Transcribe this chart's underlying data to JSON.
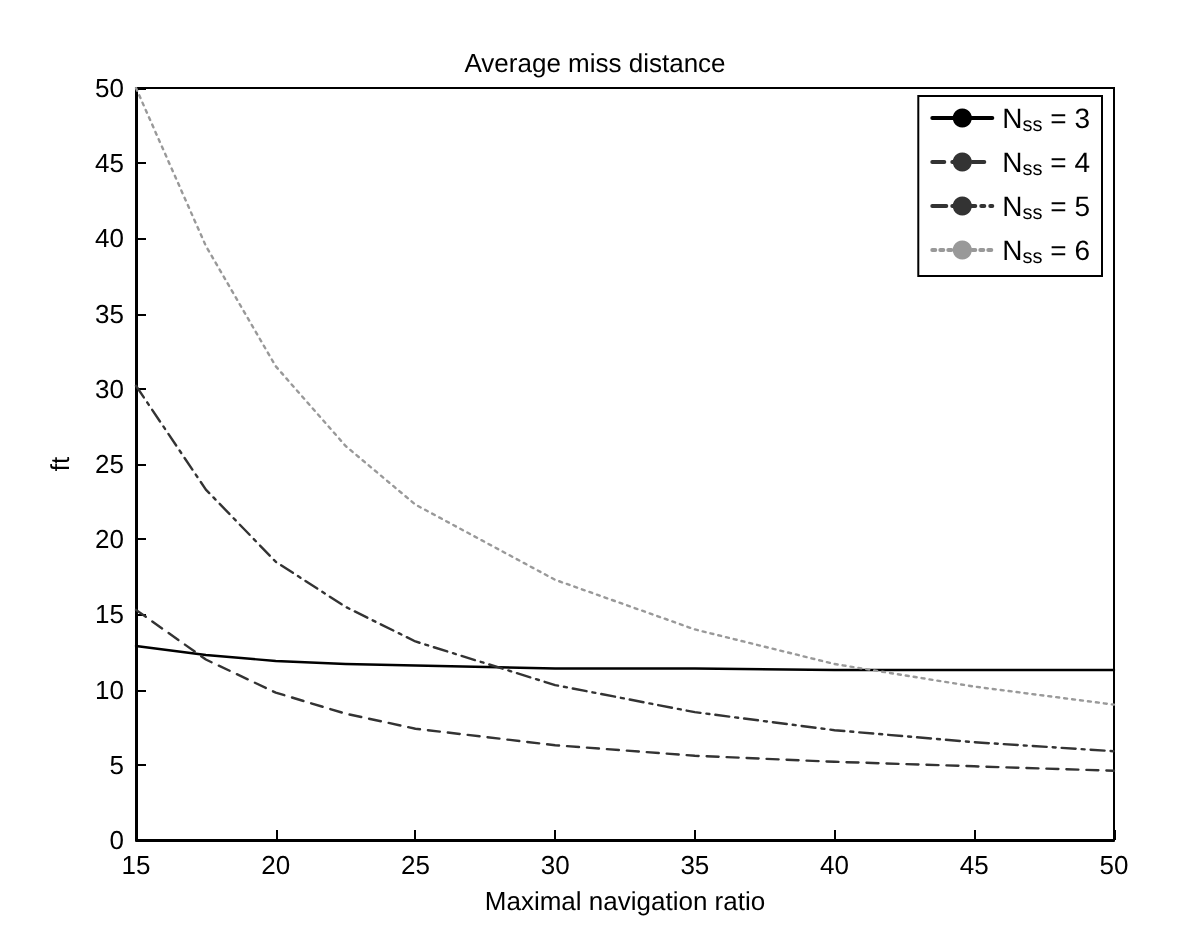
{
  "chart_data": {
    "type": "line",
    "title": "Average miss distance",
    "xlabel": "Maximal navigation ratio",
    "ylabel": "ft",
    "xlim": [
      15,
      50
    ],
    "xticks": [
      15,
      20,
      25,
      30,
      35,
      40,
      45,
      50
    ],
    "ylim": [
      0,
      50
    ],
    "yticks": [
      0,
      5,
      10,
      15,
      20,
      25,
      30,
      35,
      40,
      45,
      50
    ],
    "grid": false,
    "legend": "top right",
    "marker": "none",
    "x": [
      15,
      17.5,
      20,
      22.5,
      25,
      30,
      35,
      40,
      45,
      50
    ],
    "series": [
      {
        "name": "N$_{ss}$ = 3",
        "color": "#000000",
        "line_style": "solid",
        "values": [
          12.9,
          12.3,
          11.9,
          11.7,
          11.6,
          11.4,
          11.4,
          11.3,
          11.3,
          11.3
        ]
      },
      {
        "name": "N$_{ss}$ = 4",
        "color": "#333333",
        "line_style": "dashed",
        "values": [
          15.3,
          12.0,
          9.8,
          8.4,
          7.4,
          6.3,
          5.6,
          5.2,
          4.9,
          4.6
        ]
      },
      {
        "name": "N$_{ss}$ = 5",
        "color": "#333333",
        "line_style": "dashdot",
        "values": [
          30.2,
          23.3,
          18.5,
          15.5,
          13.2,
          10.3,
          8.5,
          7.3,
          6.5,
          5.9
        ]
      },
      {
        "name": "N$_{ss}$ = 6",
        "color": "#999999",
        "line_style": "dotted",
        "values": [
          50,
          39.5,
          31.5,
          26.2,
          22.3,
          17.3,
          14.0,
          11.7,
          10.2,
          9.0
        ]
      }
    ]
  }
}
